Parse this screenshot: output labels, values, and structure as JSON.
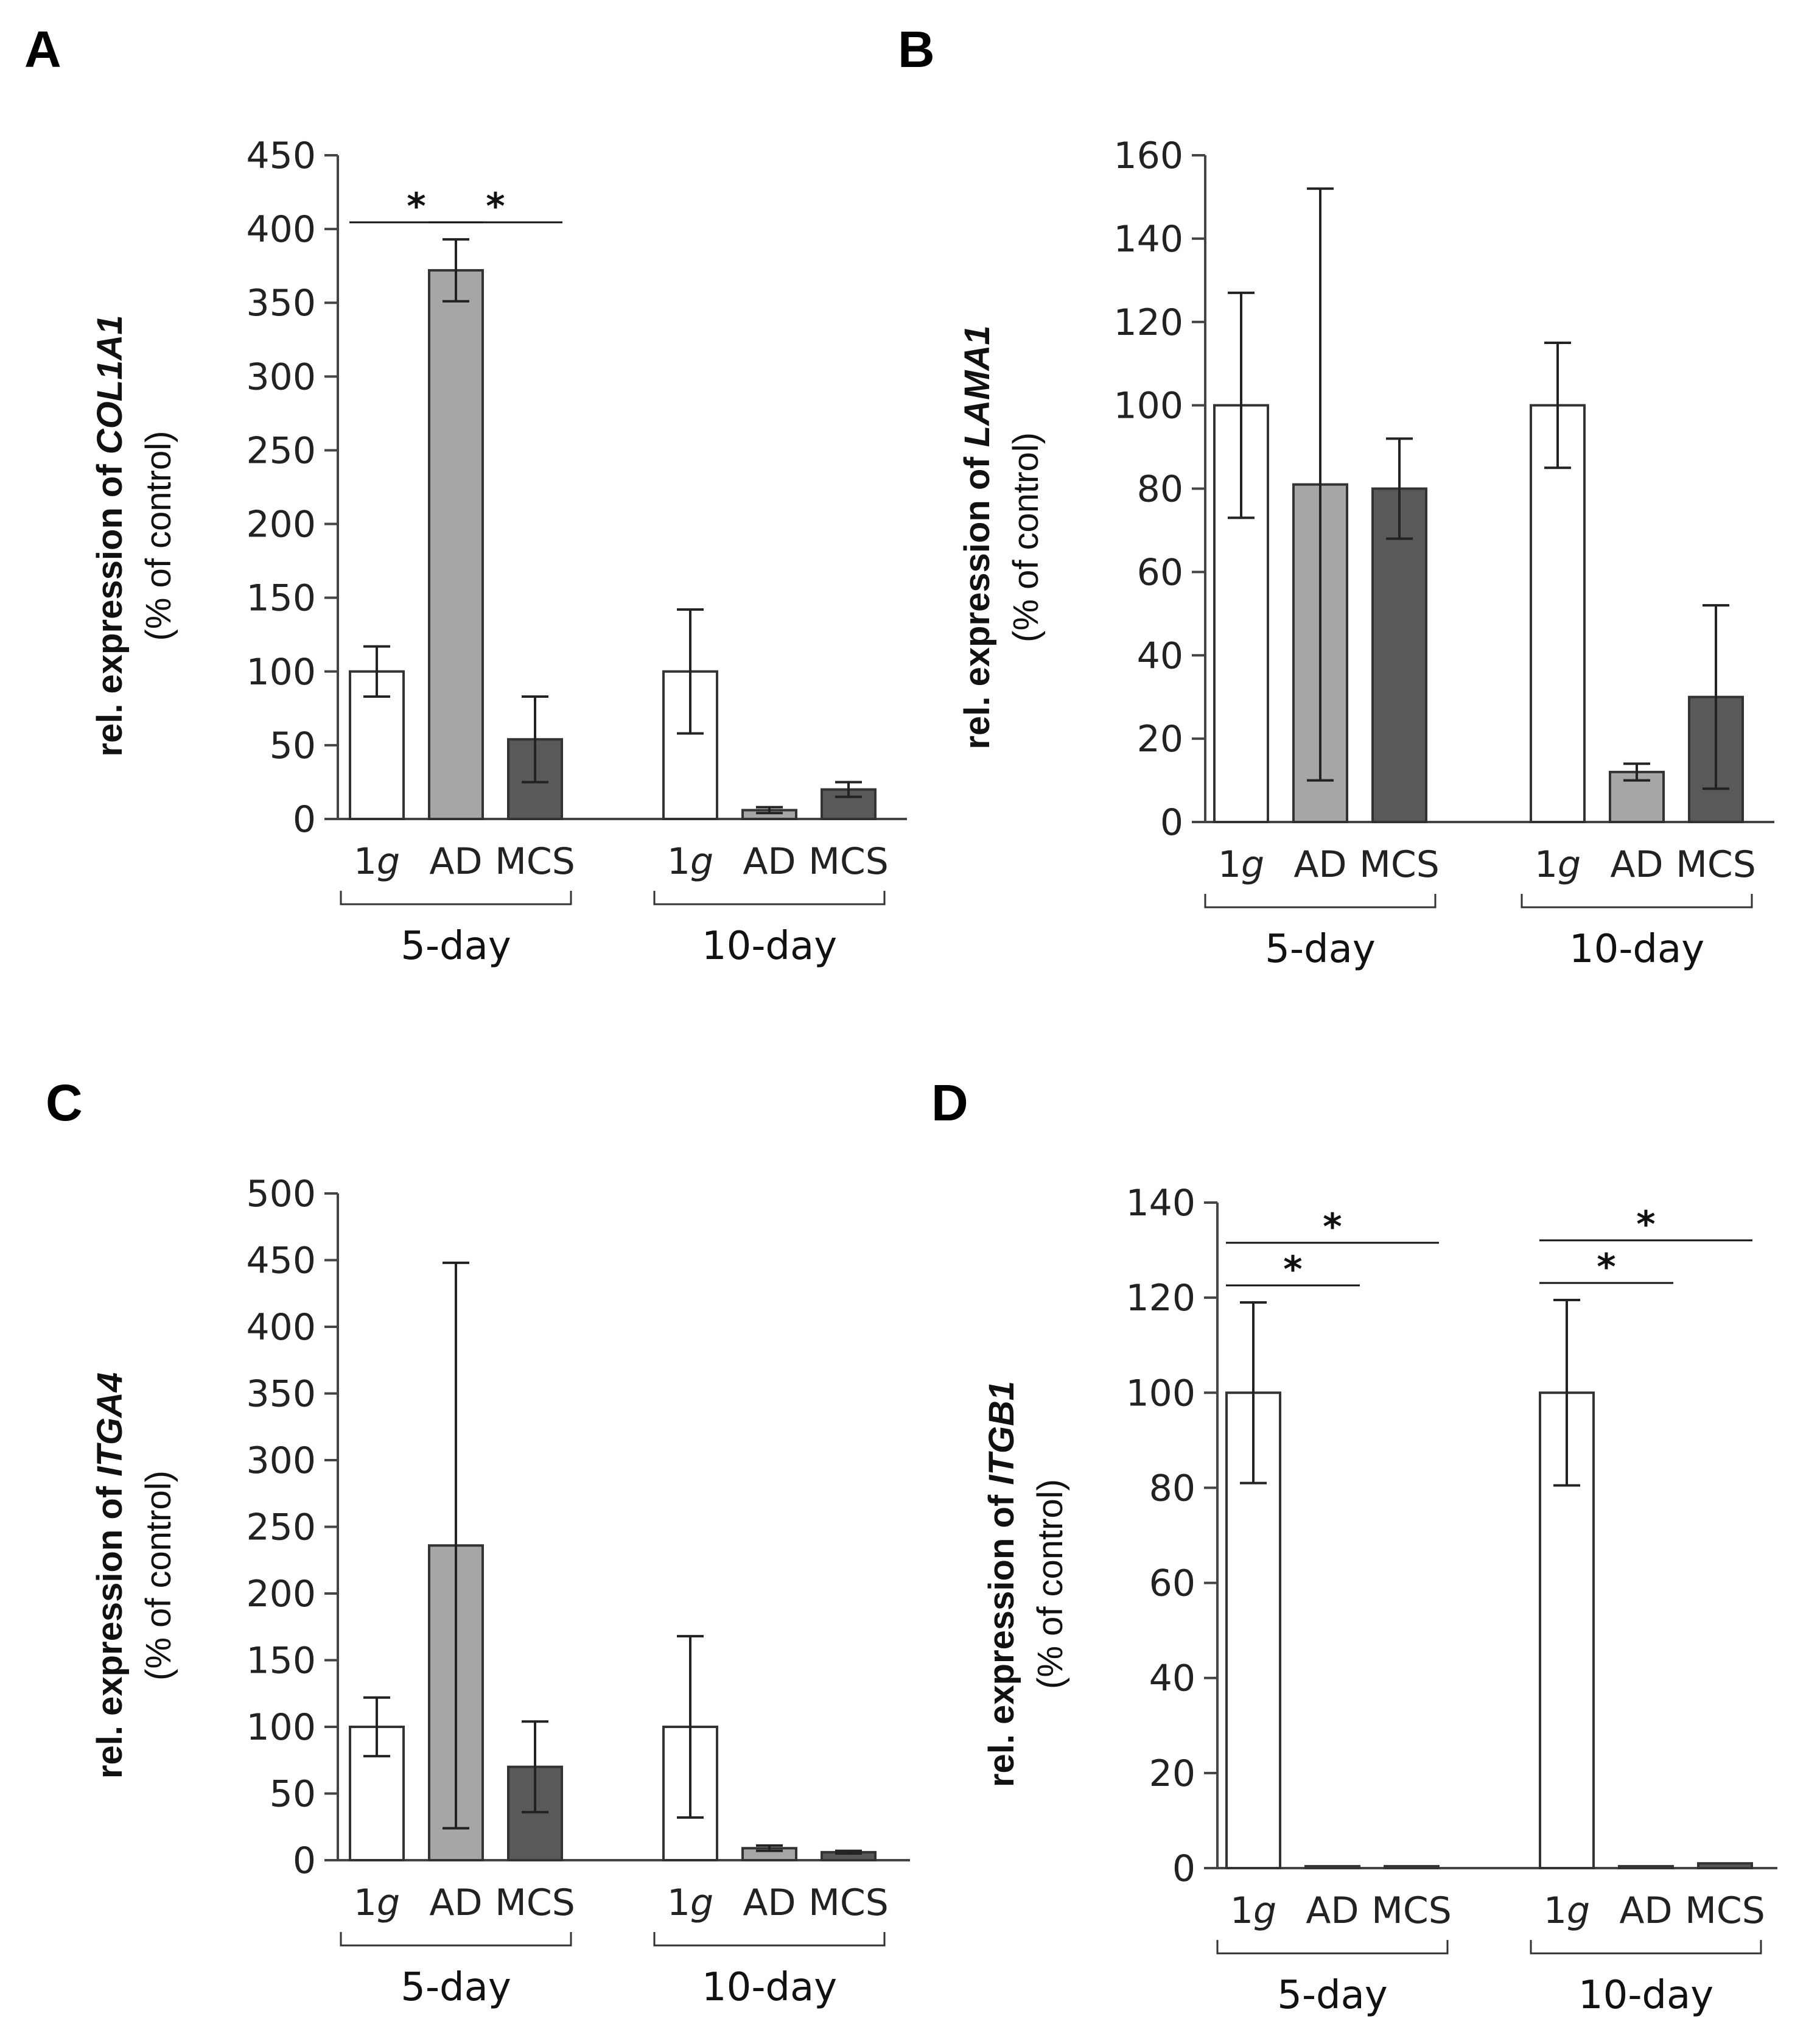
{
  "chart_data": [
    {
      "type": "bar",
      "panel": "A",
      "gene": "COL1A1",
      "ylabel_prefix": "rel. expression of ",
      "ylabel_line2": "(% of control)",
      "ylim": [
        0,
        450
      ],
      "yticks": [
        0,
        50,
        100,
        150,
        200,
        250,
        300,
        350,
        400,
        450
      ],
      "groups": [
        {
          "label": "5-day",
          "categories": [
            "1g",
            "AD",
            "MCS"
          ],
          "values": [
            100,
            372,
            54
          ],
          "errors": [
            17,
            21,
            29
          ]
        },
        {
          "label": "10-day",
          "categories": [
            "1g",
            "AD",
            "MCS"
          ],
          "values": [
            100,
            6,
            20
          ],
          "errors": [
            42,
            2,
            5
          ]
        }
      ],
      "significance": [
        {
          "group": 0,
          "from": 0,
          "to": 1,
          "label": "*"
        },
        {
          "group": 0,
          "from": 1,
          "to": 2,
          "label": "*"
        }
      ]
    },
    {
      "type": "bar",
      "panel": "B",
      "gene": "LAMA1",
      "ylabel_prefix": "rel. expression of ",
      "ylabel_line2": "(% of control)",
      "ylim": [
        0,
        160
      ],
      "yticks": [
        0,
        20,
        40,
        60,
        80,
        100,
        120,
        140,
        160
      ],
      "groups": [
        {
          "label": "5-day",
          "categories": [
            "1g",
            "AD",
            "MCS"
          ],
          "values": [
            100,
            81,
            80
          ],
          "errors": [
            27,
            71,
            12
          ]
        },
        {
          "label": "10-day",
          "categories": [
            "1g",
            "AD",
            "MCS"
          ],
          "values": [
            100,
            12,
            30
          ],
          "errors": [
            15,
            2,
            22
          ]
        }
      ],
      "significance": []
    },
    {
      "type": "bar",
      "panel": "C",
      "gene": "ITGA4",
      "ylabel_prefix": "rel. expression of ",
      "ylabel_line2": "(% of control)",
      "ylim": [
        0,
        500
      ],
      "yticks": [
        0,
        50,
        100,
        150,
        200,
        250,
        300,
        350,
        400,
        450,
        500
      ],
      "groups": [
        {
          "label": "5-day",
          "categories": [
            "1g",
            "AD",
            "MCS"
          ],
          "values": [
            100,
            236,
            70
          ],
          "errors": [
            22,
            212,
            34
          ]
        },
        {
          "label": "10-day",
          "categories": [
            "1g",
            "AD",
            "MCS"
          ],
          "values": [
            100,
            9,
            6
          ],
          "errors": [
            68,
            2,
            1
          ]
        }
      ],
      "significance": []
    },
    {
      "type": "bar",
      "panel": "D",
      "gene": "ITGB1",
      "ylabel_prefix": "rel. expression of ",
      "ylabel_line2": "(% of control)",
      "ylim": [
        0,
        140
      ],
      "yticks": [
        0,
        20,
        40,
        60,
        80,
        100,
        120,
        140
      ],
      "groups": [
        {
          "label": "5-day",
          "categories": [
            "1g",
            "AD",
            "MCS"
          ],
          "values": [
            100,
            0.4,
            0.4
          ],
          "errors": [
            19,
            0,
            0
          ]
        },
        {
          "label": "10-day",
          "categories": [
            "1g",
            "AD",
            "MCS"
          ],
          "values": [
            100,
            0.4,
            1
          ],
          "errors": [
            19.5,
            0,
            0
          ]
        }
      ],
      "significance": [
        {
          "group": 0,
          "from": 0,
          "to": 1,
          "label": "*"
        },
        {
          "group": 0,
          "from": 0,
          "to": 2,
          "label": "*"
        },
        {
          "group": 1,
          "from": 0,
          "to": 1,
          "label": "*"
        },
        {
          "group": 1,
          "from": 0,
          "to": 2,
          "label": "*"
        }
      ]
    }
  ],
  "colors": {
    "1g": "#ffffff",
    "AD": "#a6a6a6",
    "MCS": "#595959",
    "outline": "#333333"
  }
}
